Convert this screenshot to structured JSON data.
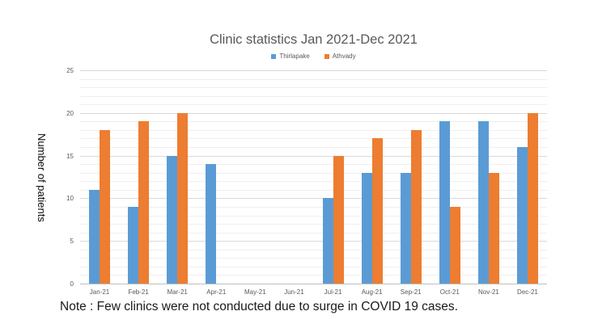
{
  "page": {
    "background": "#ffffff"
  },
  "note": "Note : Few clinics were not conducted due to surge in COVID 19 cases.",
  "chart_data": {
    "type": "bar",
    "title": "Clinic statistics Jan 2021-Dec 2021",
    "ylabel": "Number of patients",
    "xlabel": "",
    "categories": [
      "Jan-21",
      "Feb-21",
      "Mar-21",
      "Apr-21",
      "May-21",
      "Jun-21",
      "Jul-21",
      "Aug-21",
      "Sep-21",
      "Oct-21",
      "Nov-21",
      "Dec-21"
    ],
    "series": [
      {
        "name": "Thirlapake",
        "color": "#5B9BD5",
        "values": [
          11,
          9,
          15,
          14,
          null,
          null,
          10,
          13,
          13,
          19,
          19,
          16
        ]
      },
      {
        "name": "Athvady",
        "color": "#ED7D31",
        "values": [
          18,
          19,
          20,
          null,
          null,
          null,
          15,
          17,
          18,
          9,
          13,
          20
        ]
      }
    ],
    "ylim": [
      0,
      25
    ],
    "y_major_step": 5,
    "y_minor_step": 1,
    "grid": true,
    "legend_position": "top",
    "colors": {
      "major_grid": "#D9D9D9",
      "minor_grid": "#EFEFEF",
      "axis_line": "#BFBFBF",
      "text": "#595959"
    }
  }
}
